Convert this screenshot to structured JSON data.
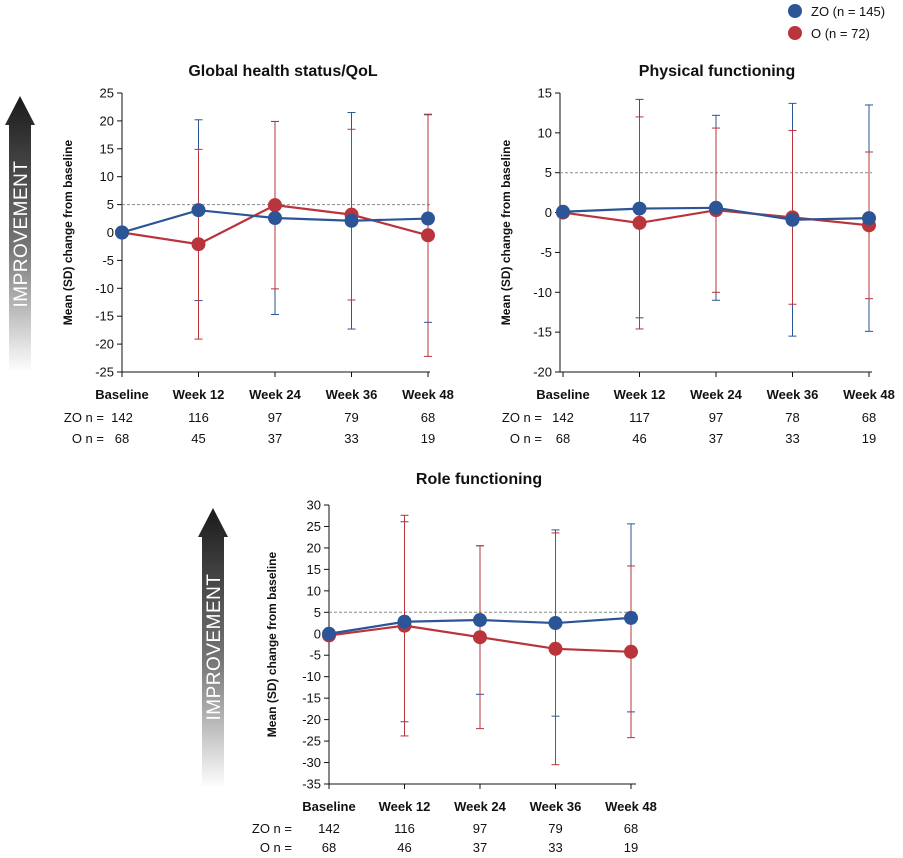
{
  "legend": [
    {
      "name": "ZO (n = 145)",
      "color": "#2b5597"
    },
    {
      "name": "O (n = 72)",
      "color": "#b9343b"
    }
  ],
  "improvement_label": "IMPROVEMENT",
  "colors": {
    "zo": "#2b5597",
    "o": "#b9343b",
    "reference_line": "#8a8a8a"
  },
  "chart_data": [
    {
      "type": "line",
      "title": "Global health status/QoL",
      "ylabel": "Mean (SD) change from baseline",
      "categories": [
        "Baseline",
        "Week 12",
        "Week 24",
        "Week 36",
        "Week 48"
      ],
      "ylim": [
        -25,
        25
      ],
      "yticks": [
        -25,
        -20,
        -15,
        -10,
        -5,
        0,
        5,
        10,
        15,
        20,
        25
      ],
      "reference_line": 5,
      "series": [
        {
          "name": "ZO",
          "values": [
            0,
            4,
            2.6,
            2.1,
            2.5
          ],
          "sd": [
            0,
            16.2,
            17.3,
            19.4,
            18.6
          ],
          "n_label": "ZO n =",
          "n": [
            "142",
            "116",
            "97",
            "79",
            "68"
          ]
        },
        {
          "name": "O",
          "values": [
            0,
            -2.1,
            4.9,
            3.2,
            -0.5
          ],
          "sd": [
            0,
            17,
            15,
            15.3,
            21.7
          ],
          "n_label": "O n =",
          "n": [
            "68",
            "45",
            "37",
            "33",
            "19"
          ]
        }
      ]
    },
    {
      "type": "line",
      "title": "Physical functioning",
      "ylabel": "Mean (SD) change from baseline",
      "categories": [
        "Baseline",
        "Week 12",
        "Week 24",
        "Week 36",
        "Week 48"
      ],
      "ylim": [
        -20,
        15
      ],
      "yticks": [
        -20,
        -15,
        -10,
        -5,
        0,
        5,
        10,
        15
      ],
      "reference_line": 5,
      "series": [
        {
          "name": "ZO",
          "values": [
            0.1,
            0.5,
            0.6,
            -0.9,
            -0.7
          ],
          "sd": [
            0,
            13.7,
            11.6,
            14.6,
            14.2
          ],
          "n_label": "ZO n =",
          "n": [
            "142",
            "117",
            "97",
            "78",
            "68"
          ]
        },
        {
          "name": "O",
          "values": [
            0,
            -1.3,
            0.3,
            -0.6,
            -1.6
          ],
          "sd": [
            0,
            13.3,
            10.3,
            10.9,
            9.2
          ],
          "n_label": "O n =",
          "n": [
            "68",
            "46",
            "37",
            "33",
            "19"
          ]
        }
      ]
    },
    {
      "type": "line",
      "title": "Role functioning",
      "ylabel": "Mean (SD) change from baseline",
      "categories": [
        "Baseline",
        "Week 12",
        "Week 24",
        "Week 36",
        "Week 48"
      ],
      "ylim": [
        -35,
        30
      ],
      "yticks": [
        -35,
        -30,
        -25,
        -20,
        -15,
        -10,
        -5,
        0,
        5,
        10,
        15,
        20,
        25,
        30
      ],
      "reference_line": 5,
      "series": [
        {
          "name": "ZO",
          "values": [
            0,
            2.8,
            3.2,
            2.5,
            3.7
          ],
          "sd": [
            0,
            23.3,
            17.3,
            21.7,
            21.9
          ],
          "n_label": "ZO n =",
          "n": [
            "142",
            "116",
            "97",
            "79",
            "68"
          ]
        },
        {
          "name": "O",
          "values": [
            -0.4,
            1.9,
            -0.8,
            -3.5,
            -4.2
          ],
          "sd": [
            0,
            25.7,
            21.3,
            27.0,
            20.0
          ],
          "n_label": "O n =",
          "n": [
            "68",
            "46",
            "37",
            "33",
            "19"
          ]
        }
      ]
    }
  ]
}
